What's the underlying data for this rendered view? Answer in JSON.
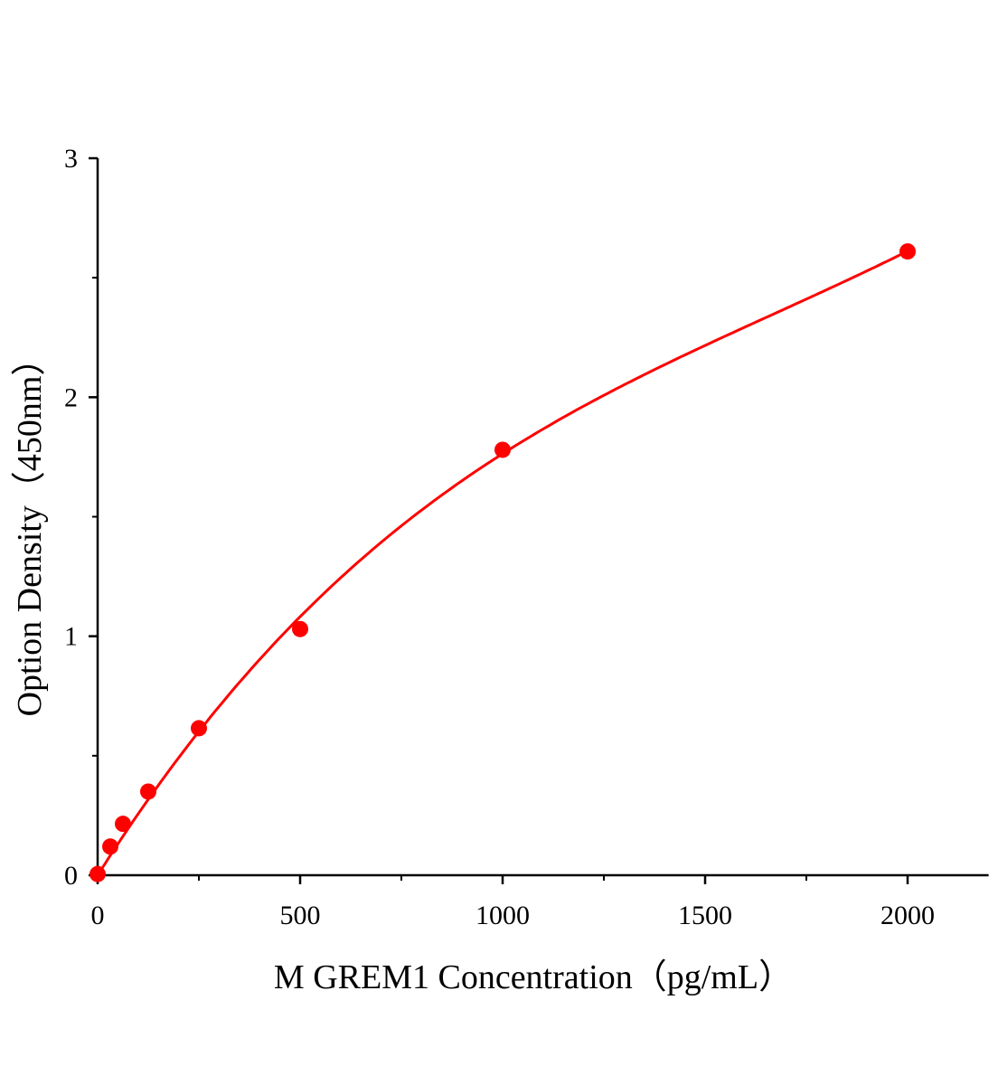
{
  "chart_data": {
    "type": "scatter",
    "title": "",
    "xlabel": "M GREM1 Concentration（pg/mL）",
    "ylabel": "Option Density（450nm）",
    "xlim": [
      0,
      2200
    ],
    "ylim": [
      0,
      3
    ],
    "x_ticks": [
      0,
      500,
      1000,
      1500,
      2000
    ],
    "x_tick_labels": [
      "0",
      "500",
      "1000",
      "1500",
      "2000"
    ],
    "x_minor_step": 250,
    "y_ticks": [
      0,
      1,
      2,
      3
    ],
    "y_tick_labels": [
      "0",
      "1",
      "2",
      "3"
    ],
    "grid": false,
    "series": [
      {
        "x": [
          0,
          31.25,
          62.5,
          125,
          250,
          500,
          1000,
          2000
        ],
        "y": [
          0.005,
          0.12,
          0.215,
          0.35,
          0.615,
          1.03,
          1.78,
          2.61
        ],
        "marker": "circle",
        "fit_line": true
      }
    ],
    "colors": {
      "series": "#ff0000",
      "axis": "#000000"
    }
  }
}
